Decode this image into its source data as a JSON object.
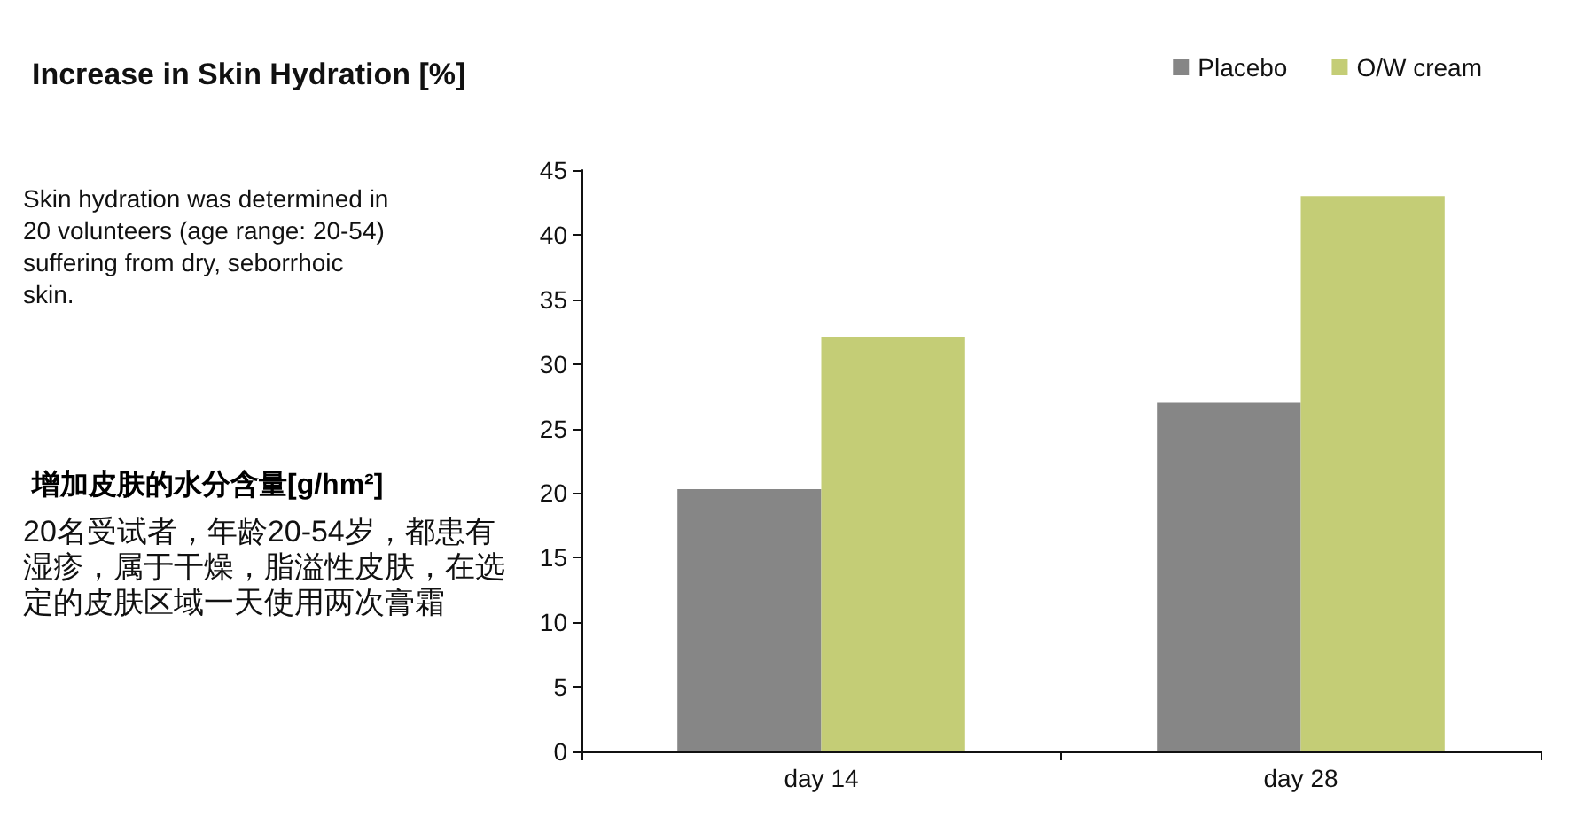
{
  "chart_data": {
    "type": "bar",
    "title": "Increase in Skin Hydration [%]",
    "subtitle": "增加皮肤的水分含量[g/hm²]",
    "annotations": [
      "Skin hydration was determined in 20 volunteers (age range: 20-54) suffering from dry, seborrhoic skin.",
      "20名受试者，年龄20-54岁，都患有湿疹，属于干燥，脂溢性皮肤，在选定的皮肤区域一天使用两次膏霜"
    ],
    "categories": [
      "day 14",
      "day 28"
    ],
    "series": [
      {
        "name": "Placebo",
        "color": "#868686",
        "values": [
          20.3,
          27.0
        ]
      },
      {
        "name": "O/W cream",
        "color": "#c4cd76",
        "values": [
          32.1,
          43.0
        ]
      }
    ],
    "ylim": [
      0,
      45
    ],
    "yticks": [
      0,
      5,
      10,
      15,
      20,
      25,
      30,
      35,
      40,
      45
    ],
    "grid": false,
    "legend": "top"
  }
}
